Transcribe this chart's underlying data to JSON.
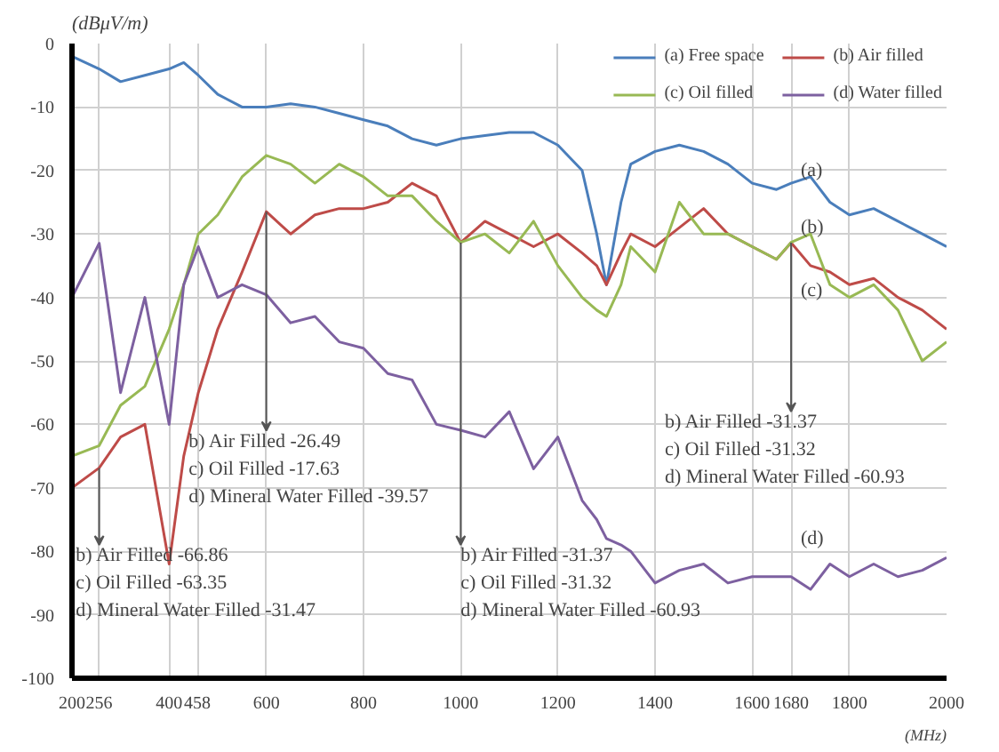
{
  "chart_data": {
    "type": "line",
    "xlabel": "(MHz)",
    "ylabel": "(dBμV/m)",
    "xlim": [
      200,
      2000
    ],
    "ylim": [
      -100,
      0
    ],
    "xticks": [
      200,
      256,
      400,
      458,
      600,
      800,
      1000,
      1200,
      1400,
      1600,
      1680,
      1800,
      2000
    ],
    "yticks": [
      0,
      -10,
      -20,
      -30,
      -40,
      -50,
      -60,
      -70,
      -80,
      -90,
      -100
    ],
    "grid": true,
    "legend": "top right",
    "line_style": "solid",
    "x": [
      200,
      256,
      300,
      350,
      400,
      430,
      460,
      500,
      550,
      600,
      650,
      700,
      750,
      800,
      850,
      900,
      950,
      1000,
      1050,
      1100,
      1150,
      1200,
      1250,
      1280,
      1300,
      1330,
      1350,
      1400,
      1450,
      1500,
      1550,
      1600,
      1650,
      1680,
      1720,
      1760,
      1800,
      1850,
      1900,
      1950,
      2000
    ],
    "series": [
      {
        "name": "(a) Free space",
        "color": "#4a7ebb",
        "values": [
          -2,
          -4,
          -6,
          -5,
          -4,
          -3,
          -5,
          -8,
          -10,
          -10,
          -9.5,
          -10,
          -11,
          -12,
          -13,
          -15,
          -16,
          -15,
          -14.5,
          -14,
          -14,
          -16,
          -20,
          -30,
          -38,
          -25,
          -19,
          -17,
          -16,
          -17,
          -19,
          -22,
          -23,
          -22,
          -21,
          -25,
          -27,
          -26,
          -28,
          -30,
          -32
        ]
      },
      {
        "name": "(b) Air filled",
        "color": "#be4b48",
        "values": [
          -70,
          -66.86,
          -62,
          -60,
          -82,
          -65,
          -55,
          -45,
          -36,
          -26.49,
          -30,
          -27,
          -26,
          -26,
          -25,
          -22,
          -24,
          -31.37,
          -28,
          -30,
          -32,
          -30,
          -33,
          -35,
          -38,
          -33,
          -30,
          -32,
          -29,
          -26,
          -30,
          -32,
          -34,
          -31.37,
          -35,
          -36,
          -38,
          -37,
          -40,
          -42,
          -45
        ]
      },
      {
        "name": "(c) Oil filled",
        "color": "#98b954",
        "values": [
          -65,
          -63.35,
          -57,
          -54,
          -45,
          -38,
          -30,
          -27,
          -21,
          -17.63,
          -19,
          -22,
          -19,
          -21,
          -24,
          -24,
          -28,
          -31.32,
          -30,
          -33,
          -28,
          -35,
          -40,
          -42,
          -43,
          -38,
          -32,
          -36,
          -25,
          -30,
          -30,
          -32,
          -34,
          -31.32,
          -30,
          -38,
          -40,
          -38,
          -42,
          -50,
          -47
        ]
      },
      {
        "name": "(d) Water filled",
        "color": "#7d60a0",
        "values": [
          -40,
          -31.47,
          -55,
          -40,
          -60,
          -38,
          -32,
          -40,
          -38,
          -39.57,
          -44,
          -43,
          -47,
          -48,
          -52,
          -53,
          -60,
          -60.93,
          -62,
          -58,
          -67,
          -62,
          -72,
          -75,
          -78,
          -79,
          -80,
          -85,
          -83,
          -82,
          -85,
          -84,
          -84,
          -84,
          -86,
          -82,
          -84,
          -82,
          -84,
          -83,
          -81
        ]
      }
    ],
    "annotations": [
      {
        "text": "b) Air Filled -66.86\nc) Oil Filled -63.35\nd) Mineral Water Filled -31.47",
        "x": 256,
        "y": -66.86
      },
      {
        "text": "b) Air Filled -26.49\nc) Oil Filled -17.63\nd) Mineral Water Filled -39.57",
        "x": 600,
        "y": -26.49
      },
      {
        "text": "b) Air Filled -31.37\nc) Oil Filled -31.32\nd) Mineral Water Filled -60.93",
        "x": 1000,
        "y": -31.37
      },
      {
        "text": "b) Air Filled -31.37\nc) Oil Filled -31.32\nd) Mineral Water Filled -60.93",
        "x": 1680,
        "y": -31.37
      },
      {
        "text": "(a)",
        "x": 1700,
        "y": -20
      },
      {
        "text": "(b)",
        "x": 1700,
        "y": -29
      },
      "(c)",
      "(d)"
    ]
  }
}
